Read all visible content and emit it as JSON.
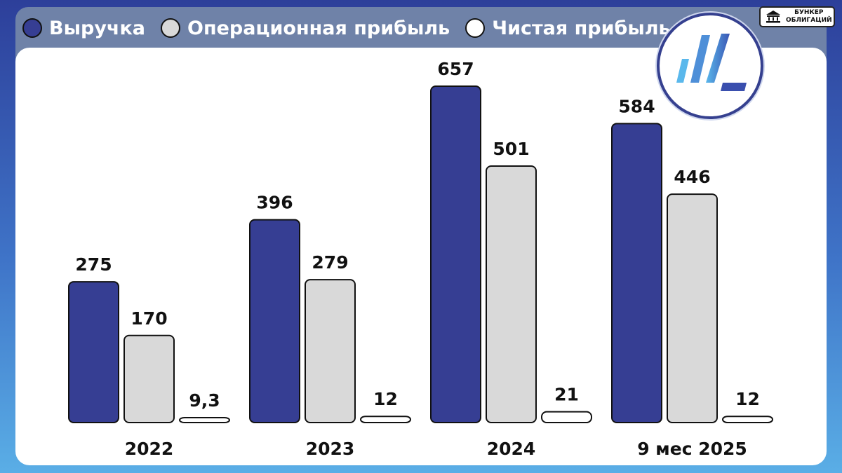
{
  "legend": [
    {
      "label": "Выручка",
      "color": "#363e93"
    },
    {
      "label": "Операционная прибыль",
      "color": "#d9d9d9"
    },
    {
      "label": "Чистая прибыль",
      "color": "#ffffff"
    }
  ],
  "brand": {
    "line1": "БУНКЕР",
    "line2": "ОБЛИГАЦИЙ",
    "icon": "bank-building-icon"
  },
  "emblem": {
    "icon": "bar-chart-logo-icon"
  },
  "chart_data": {
    "type": "bar",
    "categories": [
      "2022",
      "2023",
      "2024",
      "9 мес 2025"
    ],
    "series": [
      {
        "name": "Выручка",
        "color": "#363e93",
        "values": [
          275,
          396,
          657,
          584
        ],
        "labels": [
          "275",
          "396",
          "657",
          "584"
        ]
      },
      {
        "name": "Операционная прибыль",
        "color": "#d9d9d9",
        "values": [
          170,
          279,
          501,
          446
        ],
        "labels": [
          "170",
          "279",
          "501",
          "446"
        ]
      },
      {
        "name": "Чистая прибыль",
        "color": "#ffffff",
        "values": [
          9.3,
          12,
          21,
          12
        ],
        "labels": [
          "9,3",
          "12",
          "21",
          "12"
        ]
      }
    ],
    "ylim": [
      0,
      657
    ],
    "grid": false,
    "legend_position": "top-left"
  }
}
